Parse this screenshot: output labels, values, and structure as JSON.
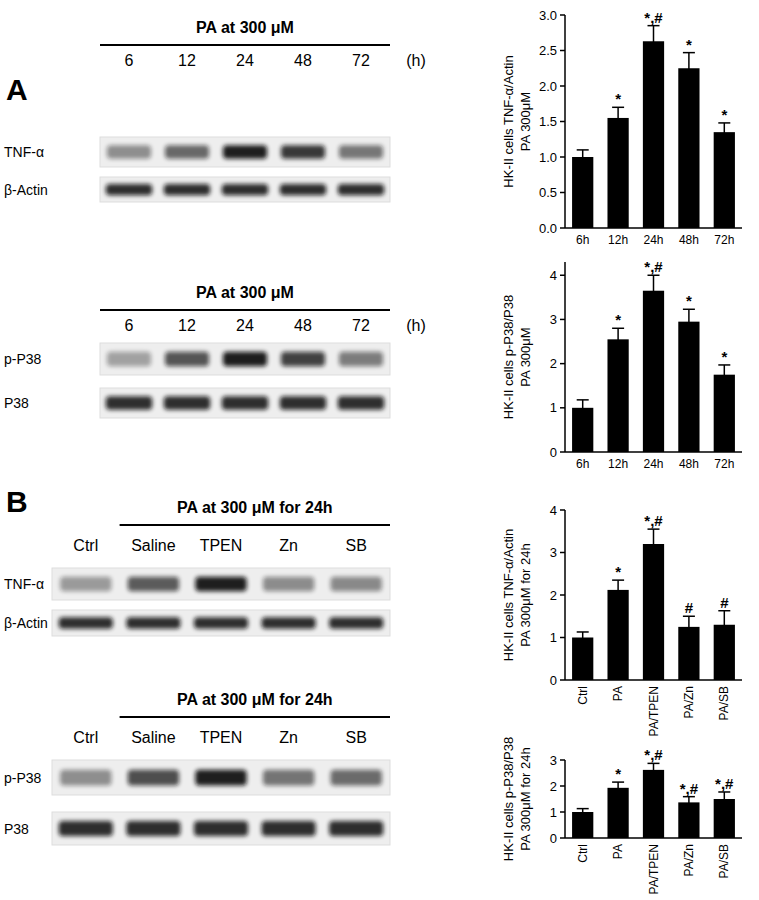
{
  "chart_data": [
    {
      "type": "bar",
      "y_label": [
        "HK-II cells TNF-α/Actin",
        "PA 300μM"
      ],
      "categories": [
        "6h",
        "12h",
        "24h",
        "48h",
        "72h"
      ],
      "values": [
        1.0,
        1.55,
        2.63,
        2.25,
        1.35
      ],
      "errors": [
        0.1,
        0.15,
        0.22,
        0.22,
        0.13
      ],
      "annotations": [
        null,
        "*",
        "*,#",
        "*",
        "*"
      ],
      "color": "#000000",
      "ylim": [
        0,
        3
      ],
      "yticks": [
        {
          "value": 0,
          "label": "0.0"
        },
        0.5,
        {
          "value": 1,
          "label": "1.0"
        },
        1.5,
        {
          "value": 2,
          "label": "2.0"
        },
        2.5,
        {
          "value": 3,
          "label": "3.0"
        }
      ]
    },
    {
      "type": "bar",
      "y_label": [
        "HK-II cells p-P38/P38",
        "PA 300μM"
      ],
      "categories": [
        "6h",
        "12h",
        "24h",
        "48h",
        "72h"
      ],
      "values": [
        1.0,
        2.55,
        3.65,
        2.95,
        1.75
      ],
      "errors": [
        0.18,
        0.25,
        0.35,
        0.28,
        0.22
      ],
      "annotations": [
        null,
        "*",
        "*,#",
        "*",
        "*"
      ],
      "color": "#000000",
      "ylim": [
        0,
        4.3
      ],
      "yticks": [
        0,
        1,
        2,
        3,
        4
      ]
    },
    {
      "type": "bar",
      "y_label": [
        "HK-II cells TNF-α/Actin",
        "PA 300μM for 24h"
      ],
      "categories": [
        "Ctrl",
        "PA",
        "PA/TPEN",
        "PA/Zn",
        "PA/SB"
      ],
      "values": [
        1.0,
        2.12,
        3.2,
        1.25,
        1.3
      ],
      "errors": [
        0.13,
        0.23,
        0.35,
        0.25,
        0.33
      ],
      "annotations": [
        null,
        "*",
        "*,#",
        "#",
        "#"
      ],
      "color": "#000000",
      "ylim": [
        0,
        4
      ],
      "yticks": [
        0,
        1,
        2,
        3,
        4
      ]
    },
    {
      "type": "bar",
      "y_label": [
        "HK-II cells p-P38/P38",
        "PA 300μM for 24h"
      ],
      "categories": [
        "Ctrl",
        "PA",
        "PA/TPEN",
        "PA/Zn",
        "PA/SB"
      ],
      "values": [
        1.0,
        1.93,
        2.62,
        1.37,
        1.5
      ],
      "errors": [
        0.13,
        0.22,
        0.25,
        0.22,
        0.27
      ],
      "annotations": [
        null,
        "*",
        "*,#",
        "*,#",
        "*,#"
      ],
      "color": "#000000",
      "ylim": [
        0,
        3
      ],
      "yticks": [
        0,
        1,
        2,
        3
      ]
    }
  ],
  "panels": [
    "A",
    "B"
  ],
  "blots": [
    {
      "header": "PA at 300 μM",
      "unit": "(h)",
      "lanes": [
        "6",
        "12",
        "24",
        "48",
        "72"
      ],
      "rows": [
        "TNF-α",
        "β-Actin"
      ]
    },
    {
      "header": "PA at 300 μM",
      "unit": "(h)",
      "lanes": [
        "6",
        "12",
        "24",
        "48",
        "72"
      ],
      "rows": [
        "p-P38",
        "P38"
      ]
    },
    {
      "header": "PA at 300 μM for 24h",
      "lanes": [
        "Ctrl",
        "Saline",
        "TPEN",
        "Zn",
        "SB"
      ],
      "rows": [
        "TNF-α",
        "β-Actin"
      ]
    },
    {
      "header": "PA at 300 μM for 24h",
      "lanes": [
        "Ctrl",
        "Saline",
        "TPEN",
        "Zn",
        "SB"
      ],
      "rows": [
        "p-P38",
        "P38"
      ]
    }
  ]
}
